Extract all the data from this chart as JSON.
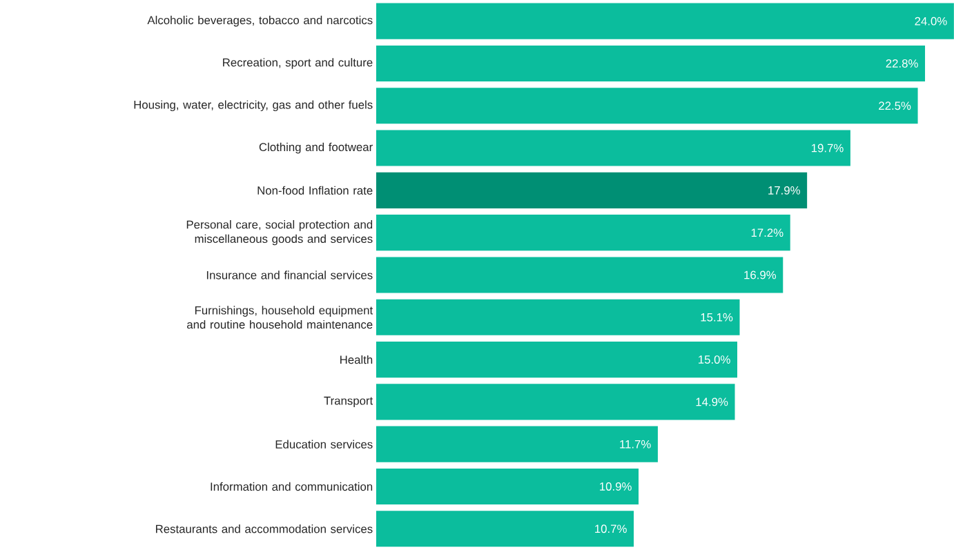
{
  "chart_data": {
    "type": "bar",
    "orientation": "horizontal",
    "categories": [
      "Alcoholic beverages, tobacco and narcotics",
      "Recreation, sport and culture",
      "Housing, water, electricity, gas and other fuels",
      "Clothing and footwear",
      "Non-food Inflation rate",
      "Personal care, social protection and miscellaneous goods and services",
      "Insurance and financial services",
      "Furnishings, household equipment and routine household maintenance",
      "Health",
      "Transport",
      "Education services",
      "Information and communication",
      "Restaurants and accommodation services"
    ],
    "values": [
      24.0,
      22.8,
      22.5,
      19.7,
      17.9,
      17.2,
      16.9,
      15.1,
      15.0,
      14.9,
      11.7,
      10.9,
      10.7
    ],
    "value_labels": [
      "24.0%",
      "22.8%",
      "22.5%",
      "19.7%",
      "17.9%",
      "17.2%",
      "16.9%",
      "15.1%",
      "15.0%",
      "14.9%",
      "11.7%",
      "10.9%",
      "10.7%"
    ],
    "colors": [
      "#0bbd9d",
      "#0bbd9d",
      "#0bbd9d",
      "#0bbd9d",
      "#008f74",
      "#0bbd9d",
      "#0bbd9d",
      "#0bbd9d",
      "#0bbd9d",
      "#0bbd9d",
      "#0bbd9d",
      "#0bbd9d",
      "#0bbd9d"
    ],
    "xlim": [
      0,
      24.0
    ],
    "tick_labels": "y"
  }
}
